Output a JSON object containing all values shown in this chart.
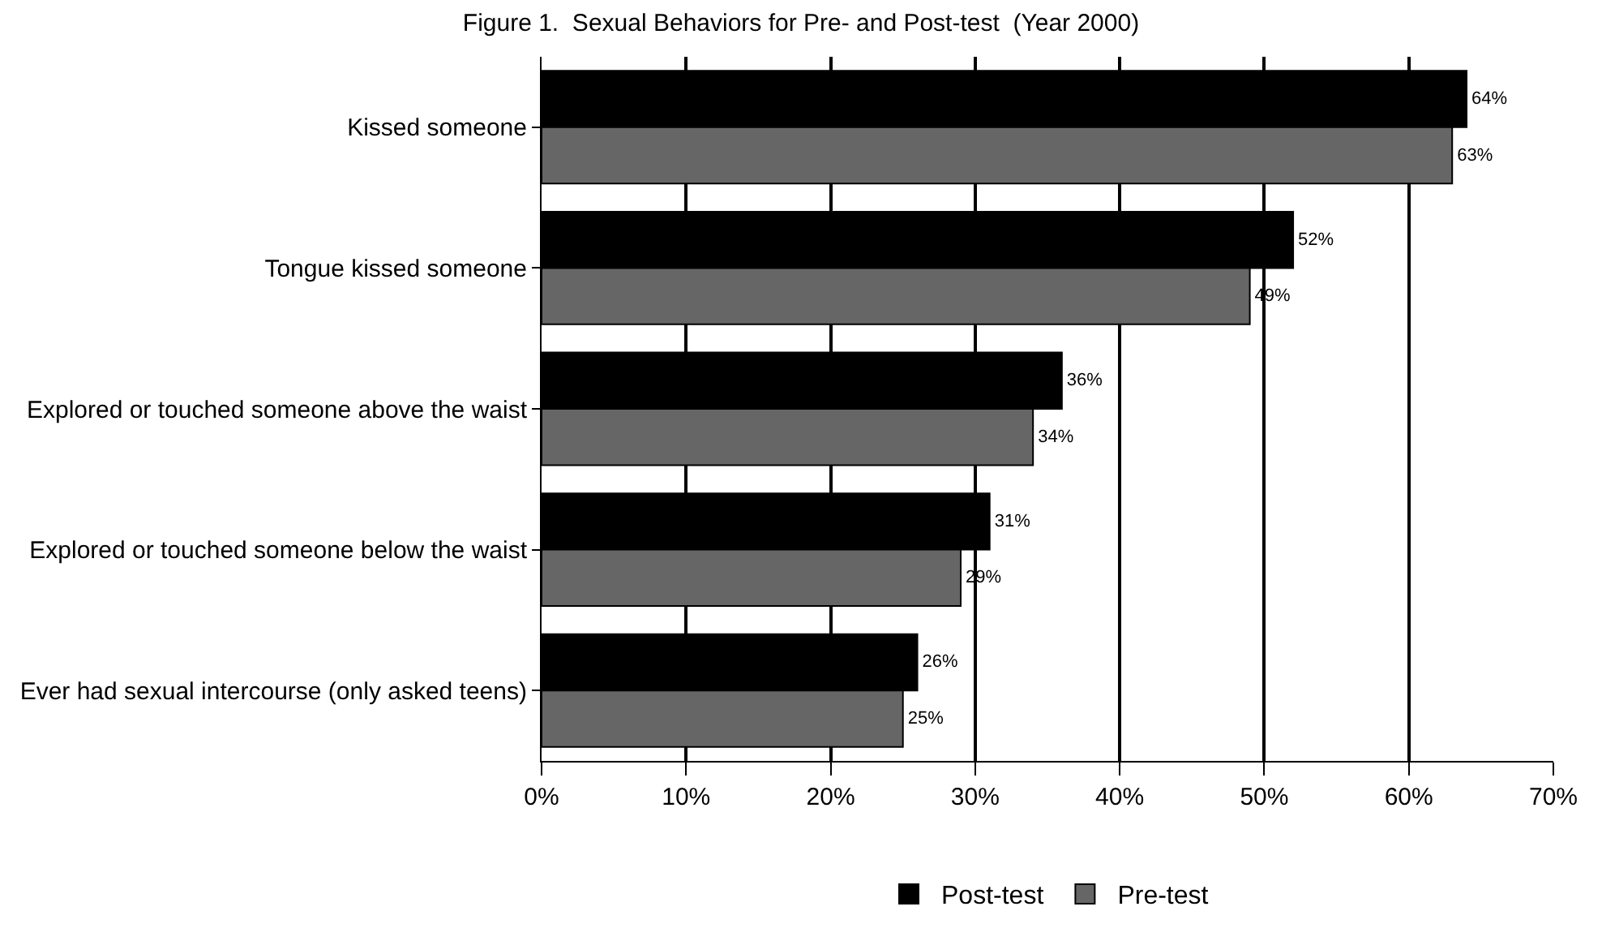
{
  "chart_data": {
    "type": "bar",
    "orientation": "horizontal",
    "title": "Figure 1.  Sexual Behaviors for Pre- and Post-test  (Year 2000)",
    "categories": [
      "Kissed someone",
      "Tongue kissed someone",
      "Explored or touched someone above the waist",
      "Explored or touched someone below the waist",
      "Ever had sexual intercourse (only asked teens)"
    ],
    "series": [
      {
        "name": "Post-test",
        "color": "#000000",
        "values": [
          64,
          52,
          36,
          31,
          26
        ],
        "value_labels": [
          "64%",
          "52%",
          "36%",
          "31%",
          "26%"
        ]
      },
      {
        "name": "Pre-test",
        "color": "#666666",
        "values": [
          63,
          49,
          34,
          29,
          25
        ],
        "value_labels": [
          "63%",
          "49%",
          "34%",
          "29%",
          "25%"
        ]
      }
    ],
    "xlim": [
      0,
      70
    ],
    "xticks": [
      {
        "value": 0,
        "label": "0%"
      },
      {
        "value": 10,
        "label": "10%"
      },
      {
        "value": 20,
        "label": "20%"
      },
      {
        "value": 30,
        "label": "30%"
      },
      {
        "value": 40,
        "label": "40%"
      },
      {
        "value": 50,
        "label": "50%"
      },
      {
        "value": 60,
        "label": "60%"
      },
      {
        "value": 70,
        "label": "70%"
      }
    ],
    "grid": "x",
    "legend": "bottom"
  }
}
